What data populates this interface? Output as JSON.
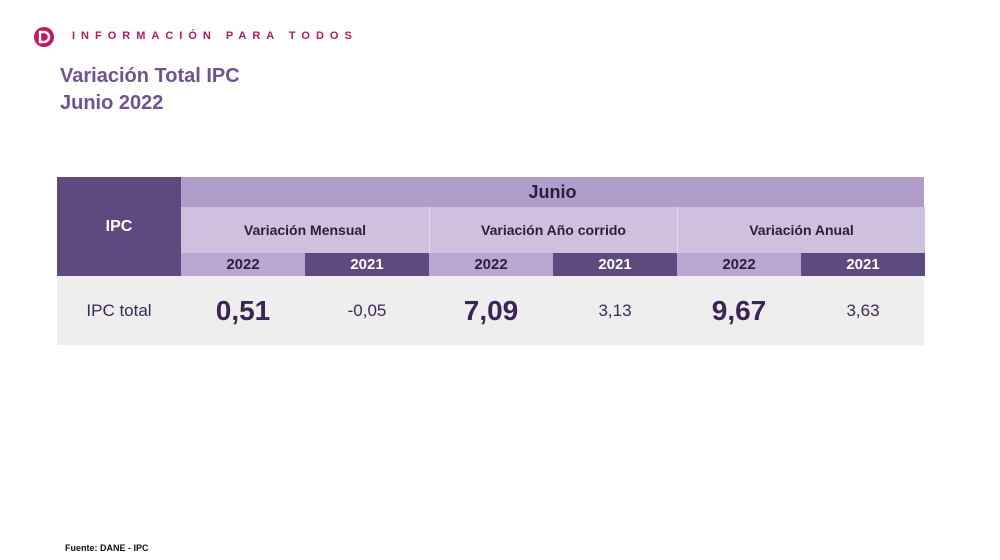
{
  "header": {
    "tagline": "INFORMACIÓN PARA TODOS",
    "title": [
      "Variación Total IPC",
      "Junio 2022"
    ]
  },
  "table": {
    "corner": "IPC",
    "period": "Junio",
    "groups": [
      "Variación Mensual",
      "Variación Año corrido",
      "Variación Anual"
    ],
    "years": [
      "2022",
      "2021",
      "2022",
      "2021",
      "2022",
      "2021"
    ],
    "rows": [
      [
        "IPC total",
        "0,51",
        "-0,05",
        "7,09",
        "3,13",
        "9,67",
        "3,63"
      ]
    ]
  },
  "footer": {
    "source": "Fuente: DANE - IPC"
  }
}
